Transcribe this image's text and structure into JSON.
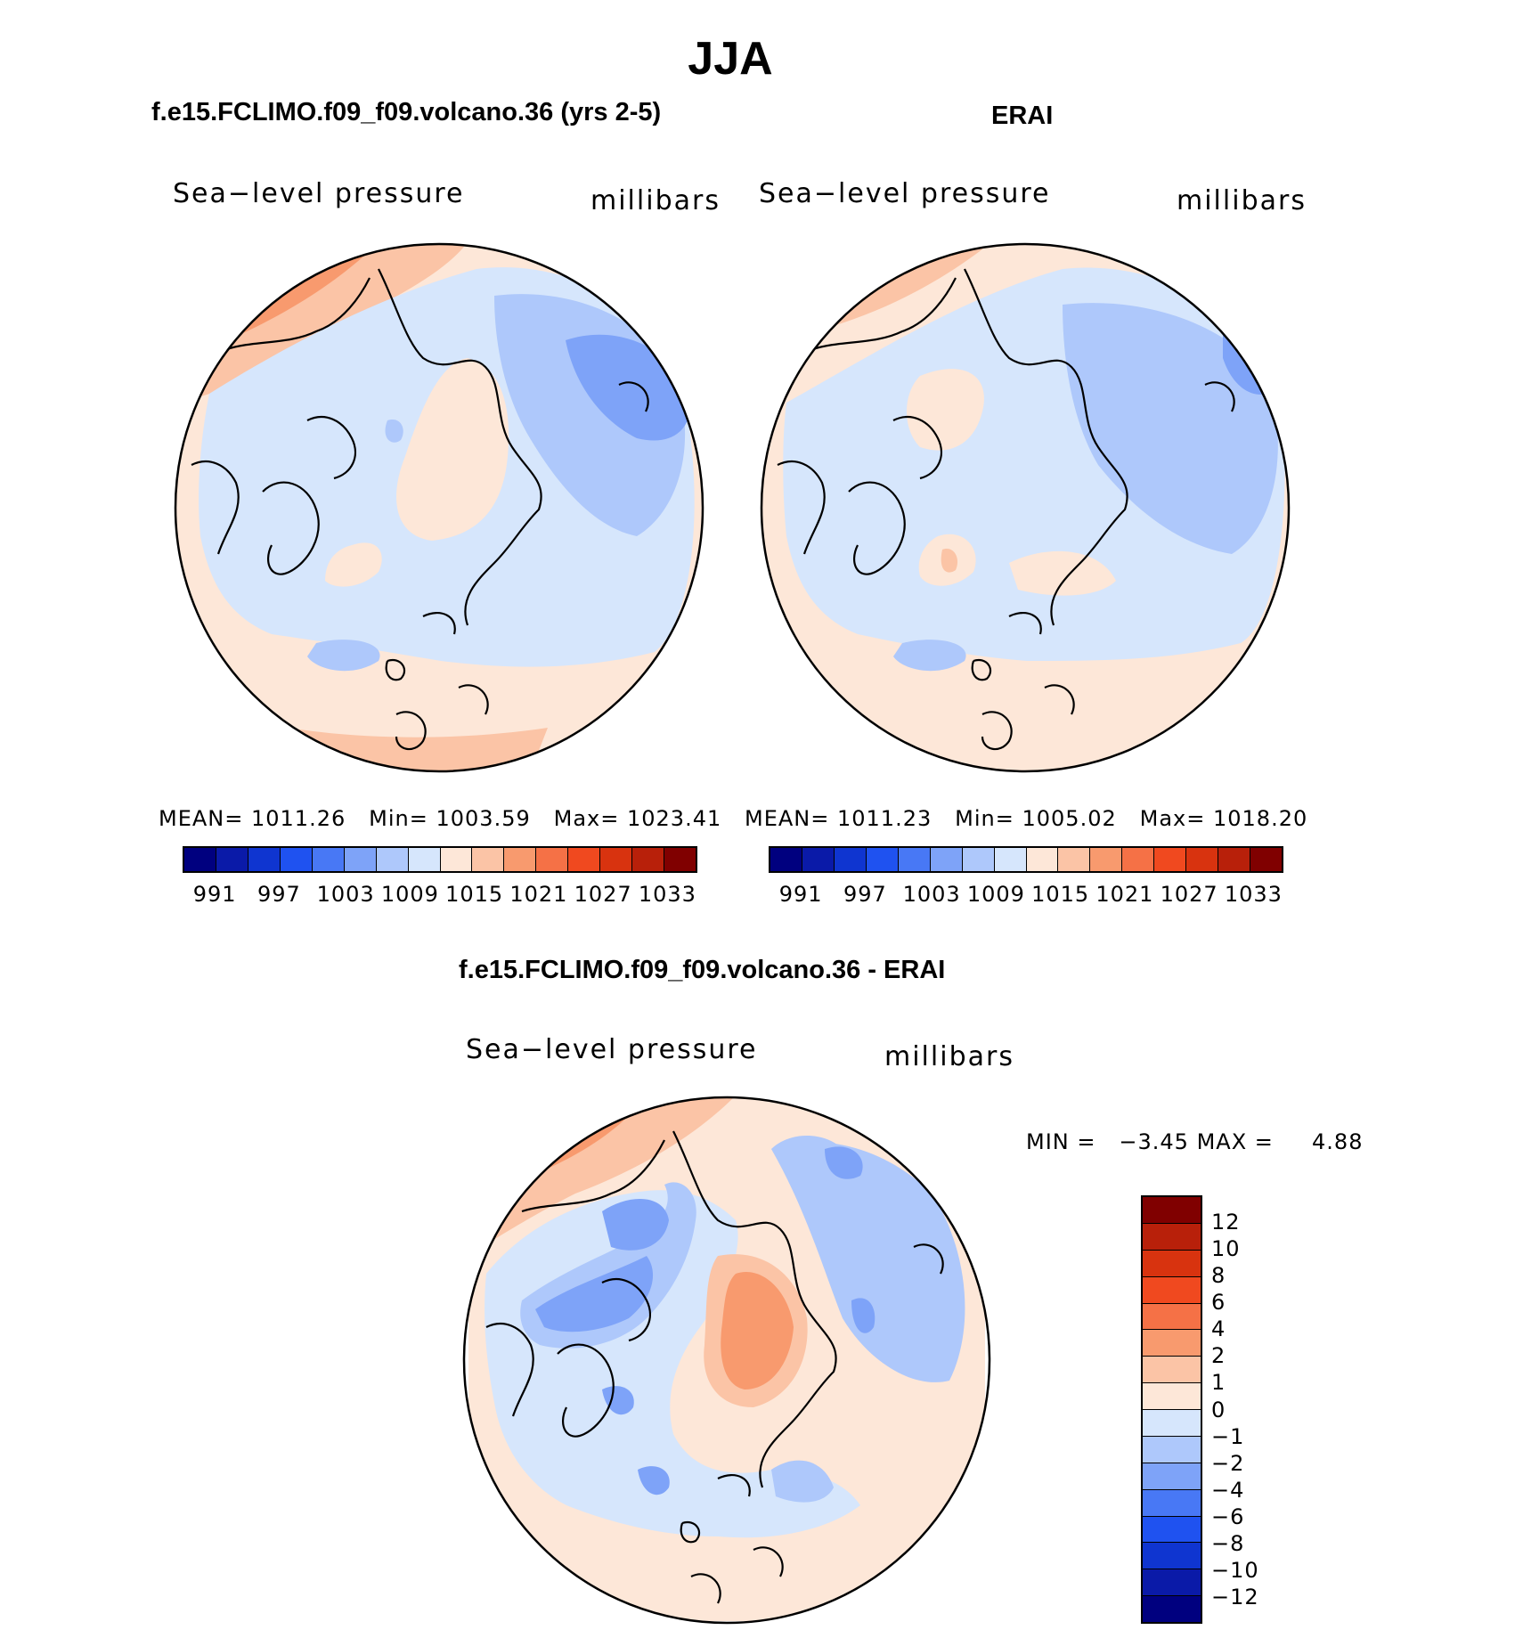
{
  "figure": {
    "title": "JJA"
  },
  "panels": {
    "model": {
      "title": "f.e15.FCLIMO.f09_f09.volcano.36 (yrs 2-5)",
      "variable": "Sea−level pressure",
      "units": "millibars",
      "mean_label": "MEAN=",
      "mean": "1011.26",
      "min_label": "Min=",
      "min": "1003.59",
      "max_label": "Max=",
      "max": "1023.41"
    },
    "obs": {
      "title": "ERAI",
      "variable": "Sea−level pressure",
      "units": "millibars",
      "mean_label": "MEAN=",
      "mean": "1011.23",
      "min_label": "Min=",
      "min": "1005.02",
      "max_label": "Max=",
      "max": "1018.20"
    },
    "diff": {
      "title": "f.e15.FCLIMO.f09_f09.volcano.36 - ERAI",
      "variable": "Sea−level pressure",
      "units": "millibars",
      "min_label": "MIN  =",
      "min": "−3.45",
      "max_label": "MAX  =",
      "max": "4.88"
    }
  },
  "colorbar_abs": {
    "colors": [
      "#00007f",
      "#0a1aa8",
      "#0f35d0",
      "#1f52f0",
      "#4878f5",
      "#7ea3f8",
      "#aec8fb",
      "#d6e6fc",
      "#fde7d8",
      "#fbc4a6",
      "#f89a6e",
      "#f57146",
      "#f0491f",
      "#d8330f",
      "#b8200a",
      "#800000"
    ],
    "labels": [
      "991",
      "997",
      "1003",
      "1009",
      "1015",
      "1021",
      "1027",
      "1033"
    ]
  },
  "colorbar_diff": {
    "colors": [
      "#800000",
      "#b8200a",
      "#d8330f",
      "#f0491f",
      "#f57146",
      "#f89a6e",
      "#fbc4a6",
      "#fde7d8",
      "#d6e6fc",
      "#aec8fb",
      "#7ea3f8",
      "#4878f5",
      "#1f52f0",
      "#0f35d0",
      "#0a1aa8",
      "#00007f"
    ],
    "labels": [
      "12",
      "10",
      "8",
      "6",
      "4",
      "2",
      "1",
      "0",
      "−1",
      "−2",
      "−4",
      "−6",
      "−8",
      "−10",
      "−12"
    ]
  }
}
